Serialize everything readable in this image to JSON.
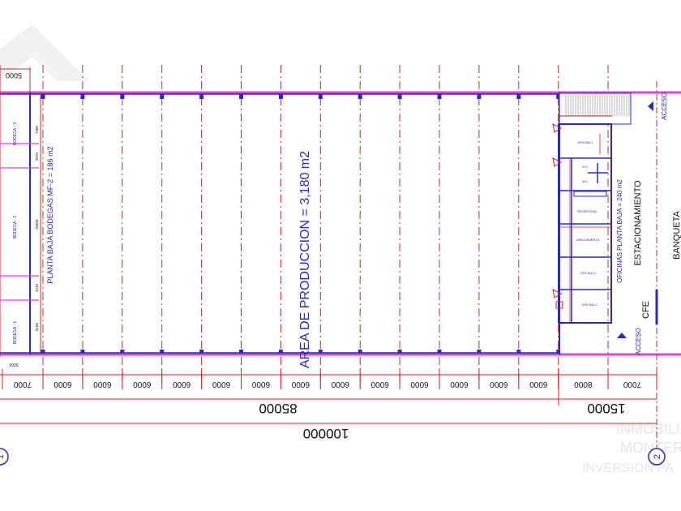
{
  "plan": {
    "production_area": "AREA DE PRODUCCION = 3,180 m2",
    "warehouses_area": "PLANTA BAJA BODEGAS  MF-2 = 186 m2",
    "offices_area": "OFICINAS PLANTA BAJA = 240 m2",
    "parking": "ESTACIONAMIENTO",
    "cfe": "CFE",
    "sidewalk": "BANQUETA",
    "access_top": "ACCESO",
    "access_bottom": "ACCESO",
    "warehouses": [
      "BODEGA - 3",
      "BODEGA - 2",
      "BODEGA - 1"
    ],
    "warehouse_dims": [
      "7380",
      "3970",
      "16500",
      "3740",
      "8160"
    ],
    "offices": [
      "OFICINA 1",
      "W.C",
      "W.C",
      "RECEPCION",
      "AREA ABIERTA",
      "OFICINA 3",
      "OFICINA 2"
    ],
    "top_left_dim": "5000",
    "bottom_left_dim": "5000"
  },
  "dimensions": {
    "bays": [
      "7000",
      "6000",
      "6000",
      "6000",
      "6000",
      "6000",
      "6000",
      "6000",
      "6000",
      "6000",
      "6000",
      "6000",
      "6000",
      "6000",
      "8000",
      "7000"
    ],
    "subtotal_production": "85000",
    "subtotal_offices": "15000",
    "total": "100000"
  },
  "grid_axes": [
    "1",
    "2"
  ],
  "watermark": [
    "INMOBILIARIA",
    "MONTERREY",
    "INVERSION PARA CRECER"
  ],
  "colors": {
    "wall": "#2a2ab8",
    "boundary": "#e040e0",
    "dimension": "#d42020"
  }
}
